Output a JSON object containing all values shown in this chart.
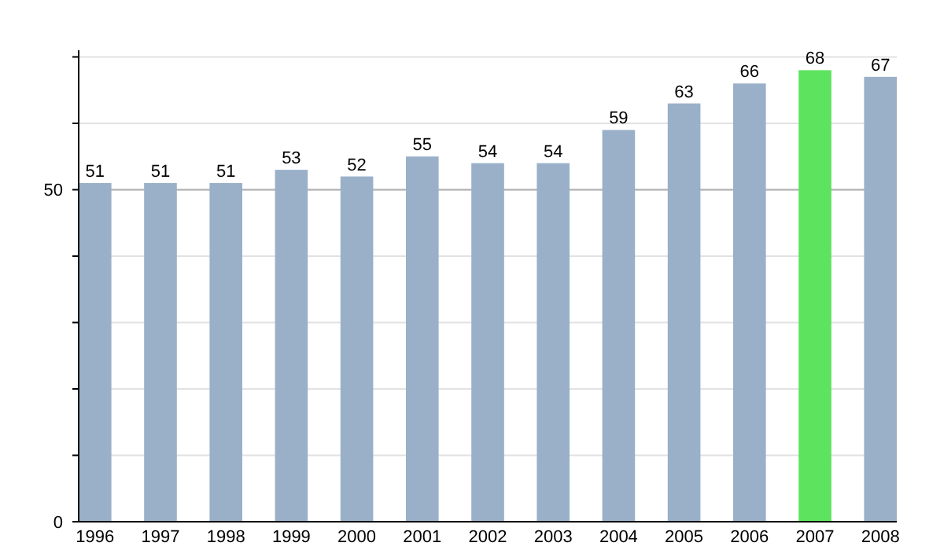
{
  "chart_data": {
    "type": "bar",
    "categories": [
      "1996",
      "1997",
      "1998",
      "1999",
      "2000",
      "2001",
      "2002",
      "2003",
      "2004",
      "2005",
      "2006",
      "2007",
      "2008"
    ],
    "values": [
      51,
      51,
      51,
      53,
      52,
      55,
      54,
      54,
      59,
      63,
      66,
      68,
      67
    ],
    "colors": [
      "#9ab0c8",
      "#9ab0c8",
      "#9ab0c8",
      "#9ab0c8",
      "#9ab0c8",
      "#9ab0c8",
      "#9ab0c8",
      "#9ab0c8",
      "#9ab0c8",
      "#9ab0c8",
      "#9ab0c8",
      "#5ee35e",
      "#9ab0c8"
    ],
    "ylim": [
      0,
      71
    ],
    "yticks": [
      0,
      {
        "value": 10,
        "label": null
      },
      {
        "value": 20,
        "label": null
      },
      {
        "value": 30,
        "label": null
      },
      {
        "value": 40,
        "label": null
      },
      50,
      {
        "value": 60,
        "label": null
      },
      {
        "value": 70,
        "label": null
      }
    ],
    "grid": "y",
    "data_labels": true,
    "ref_lines": [
      {
        "axis": "y",
        "value": 50,
        "color": "#b0b0b0"
      }
    ]
  }
}
